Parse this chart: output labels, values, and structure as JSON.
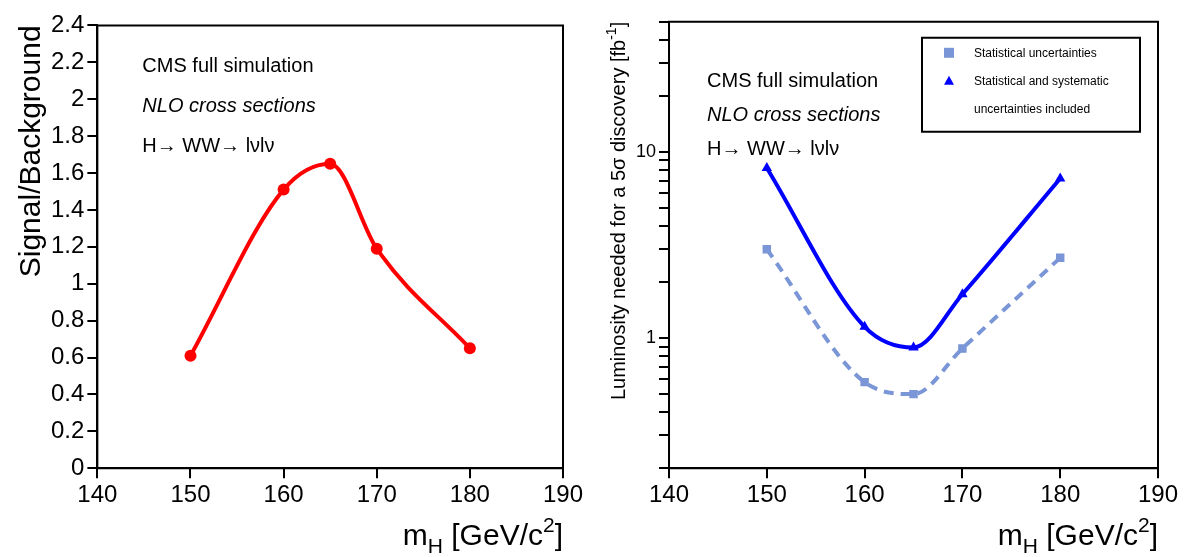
{
  "chart_data": [
    {
      "type": "line",
      "ylabel": "Signal/Background",
      "xlabel": "m$_{H}$ [GeV/c$^{2}$]",
      "x": [
        150,
        160,
        165,
        170,
        180
      ],
      "series": [
        {
          "color": "#ff0000",
          "values": [
            0.61,
            1.51,
            1.65,
            1.19,
            0.65
          ]
        }
      ],
      "xlim": [
        140,
        190
      ],
      "xticks": [
        140,
        150,
        160,
        170,
        180,
        190
      ],
      "ylim": [
        0,
        2.4
      ],
      "yticks": [
        0,
        0.2,
        0.4,
        0.6,
        0.8,
        1,
        1.2,
        1.4,
        1.6,
        1.8,
        2,
        2.2,
        2.4
      ],
      "marker": "circle",
      "line_style": "solid",
      "grid": false,
      "legend": false,
      "annotations": [
        "CMS full simulation",
        "NLO cross sections",
        "H→ WW→ lνlν"
      ]
    },
    {
      "type": "line",
      "ylabel": "Luminosity needed for a 5σ discovery [fb$^{-1}$]",
      "xlabel": "m$_{H}$ [GeV/c$^{2}$]",
      "x": [
        150,
        160,
        165,
        170,
        180
      ],
      "series": [
        {
          "name": "Statistical uncertainties",
          "color": "#7b96d6",
          "marker": "square",
          "line_style": "dashed",
          "values": [
            3.0,
            0.58,
            0.5,
            0.88,
            2.7
          ]
        },
        {
          "name": "Statistical and systematic uncertainties included",
          "color": "#0000ff",
          "marker": "triangle",
          "line_style": "solid",
          "values": [
            8.2,
            1.15,
            0.89,
            1.72,
            7.2
          ]
        }
      ],
      "xlim": [
        140,
        190
      ],
      "xticks": [
        140,
        150,
        160,
        170,
        180,
        190
      ],
      "log": "y",
      "ylim": [
        0.2,
        50
      ],
      "yticks": [
        {
          "value": 0.2,
          "label": null
        },
        {
          "value": 0.3,
          "label": null
        },
        {
          "value": 0.4,
          "label": null
        },
        {
          "value": 0.5,
          "label": null
        },
        {
          "value": 0.6,
          "label": null
        },
        {
          "value": 0.7,
          "label": null
        },
        {
          "value": 0.8,
          "label": null
        },
        {
          "value": 0.9,
          "label": null
        },
        1,
        {
          "value": 2,
          "label": null
        },
        {
          "value": 3,
          "label": null
        },
        {
          "value": 4,
          "label": null
        },
        {
          "value": 5,
          "label": null
        },
        {
          "value": 6,
          "label": null
        },
        {
          "value": 7,
          "label": null
        },
        {
          "value": 8,
          "label": null
        },
        {
          "value": 9,
          "label": null
        },
        10,
        {
          "value": 20,
          "label": null
        },
        {
          "value": 30,
          "label": null
        },
        {
          "value": 40,
          "label": null
        },
        {
          "value": 50,
          "label": null
        }
      ],
      "grid": false,
      "legend": "top right",
      "annotations": [
        "CMS full simulation",
        "NLO cross sections",
        "H→ WW→ lνlν"
      ]
    }
  ]
}
